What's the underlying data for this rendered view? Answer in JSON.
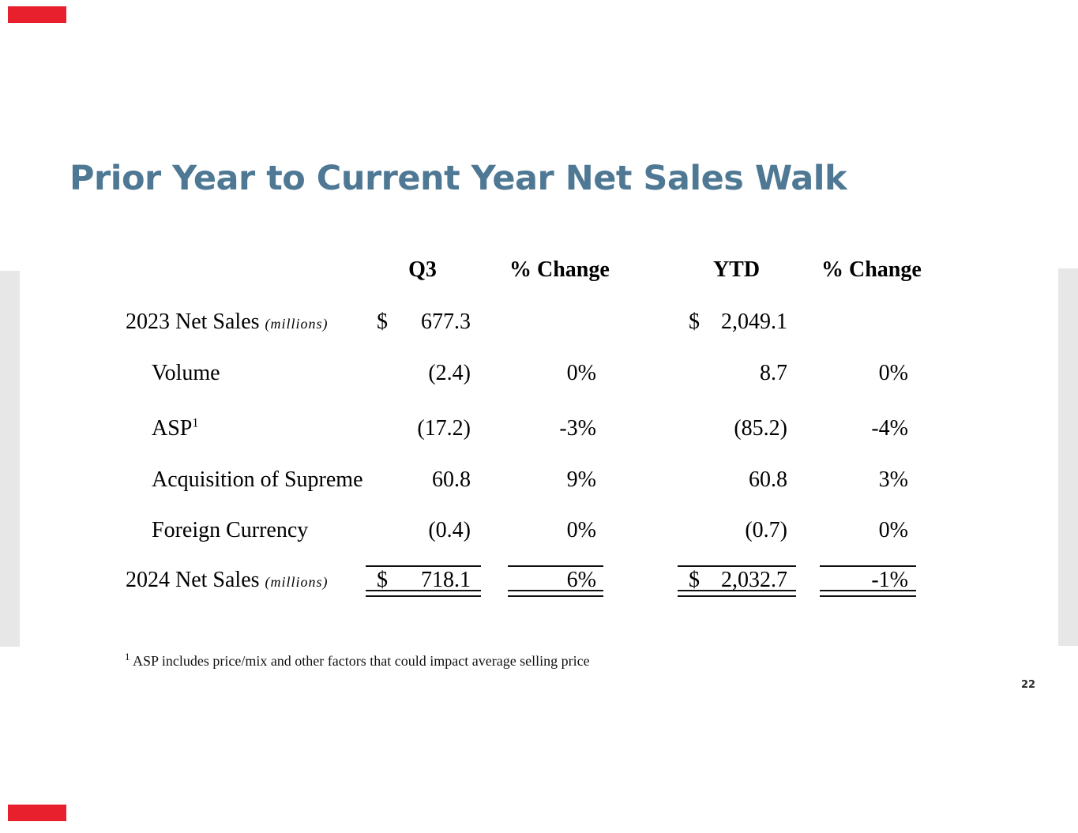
{
  "slide": {
    "title": "Prior Year to Current Year Net Sales Walk",
    "page_number": "22",
    "accent_color": "#e8202d",
    "title_color": "#4e7893",
    "side_bar_color": "#e7e7e7"
  },
  "table": {
    "headers": {
      "q3": "Q3",
      "q3_change": "% Change",
      "ytd": "YTD",
      "ytd_change": "% Change"
    },
    "rows": [
      {
        "label": "2023 Net Sales",
        "label_sup": "",
        "label_note": "(millions)",
        "q3_dollar": "$",
        "q3": "677.3",
        "q3_change": "",
        "ytd_dollar": "$",
        "ytd": "2,049.1",
        "ytd_change": ""
      },
      {
        "label": "Volume",
        "label_sup": "",
        "label_note": "",
        "q3_dollar": "",
        "q3": "(2.4)",
        "q3_change": "0%",
        "ytd_dollar": "",
        "ytd": "8.7",
        "ytd_change": "0%"
      },
      {
        "label": "ASP",
        "label_sup": "1",
        "label_note": "",
        "q3_dollar": "",
        "q3": "(17.2)",
        "q3_change": "-3%",
        "ytd_dollar": "",
        "ytd": "(85.2)",
        "ytd_change": "-4%"
      },
      {
        "label": "Acquisition of Supreme",
        "label_sup": "",
        "label_note": "",
        "q3_dollar": "",
        "q3": "60.8",
        "q3_change": "9%",
        "ytd_dollar": "",
        "ytd": "60.8",
        "ytd_change": "3%"
      },
      {
        "label": "Foreign Currency",
        "label_sup": "",
        "label_note": "",
        "q3_dollar": "",
        "q3": "(0.4)",
        "q3_change": "0%",
        "ytd_dollar": "",
        "ytd": "(0.7)",
        "ytd_change": "0%"
      },
      {
        "label": "2024 Net Sales",
        "label_sup": "",
        "label_note": "(millions)",
        "q3_dollar": "$",
        "q3": "718.1",
        "q3_change": "6%",
        "ytd_dollar": "$",
        "ytd": "2,032.7",
        "ytd_change": "-1%"
      }
    ]
  },
  "footnote": {
    "sup": "1",
    "text": " ASP includes price/mix and other factors that could impact average selling price"
  }
}
